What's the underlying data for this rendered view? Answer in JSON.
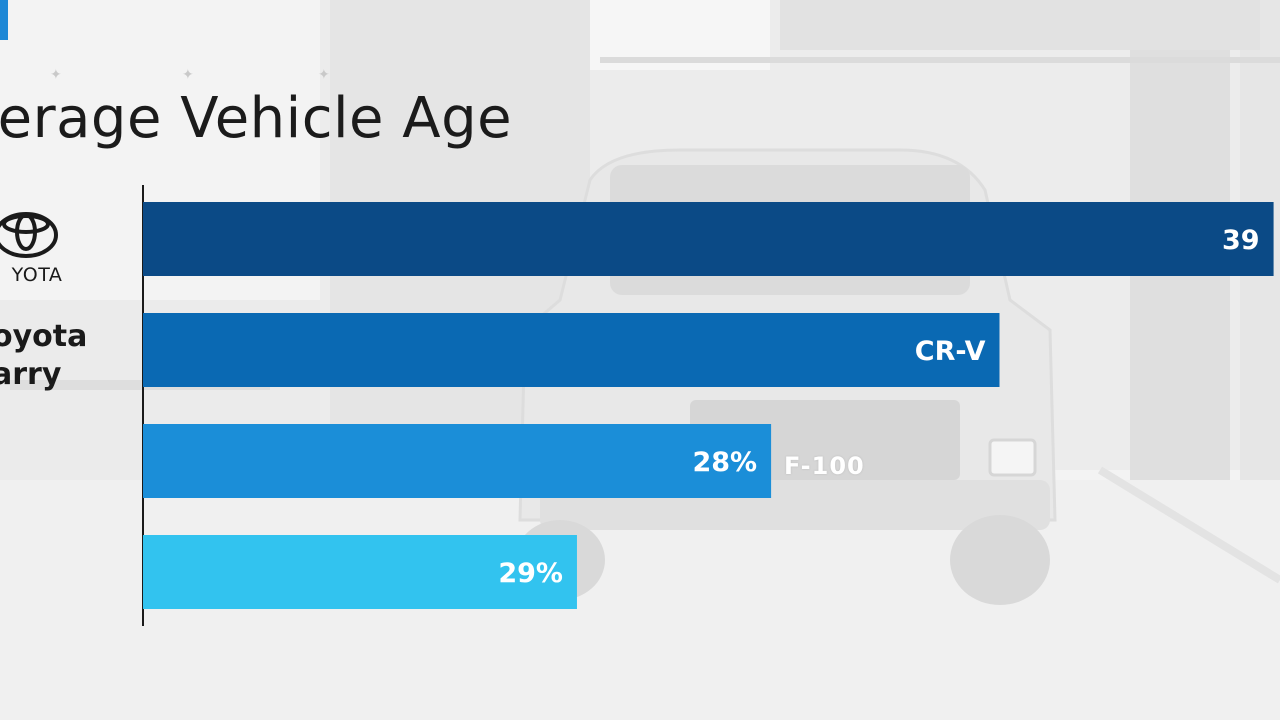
{
  "page": {
    "title": "verage Vehicle Age",
    "logo_text": "YOTA",
    "side_label": "oyota\narry",
    "plate_text": "F-100"
  },
  "colors": {
    "bar_1": "#0b4a86",
    "bar_2": "#0a69b3",
    "bar_3": "#1b8ed8",
    "bar_4": "#32c3ef",
    "accent": "#1e88d6"
  },
  "chart_data": {
    "type": "bar",
    "orientation": "horizontal",
    "title": "verage Vehicle Age",
    "xlim": [
      0,
      100
    ],
    "grid": false,
    "bars": [
      {
        "label": "39",
        "value": 99
      },
      {
        "label": "CR-V",
        "value": 75
      },
      {
        "label": "28%",
        "value": 55
      },
      {
        "label": "29%",
        "value": 38
      }
    ]
  }
}
